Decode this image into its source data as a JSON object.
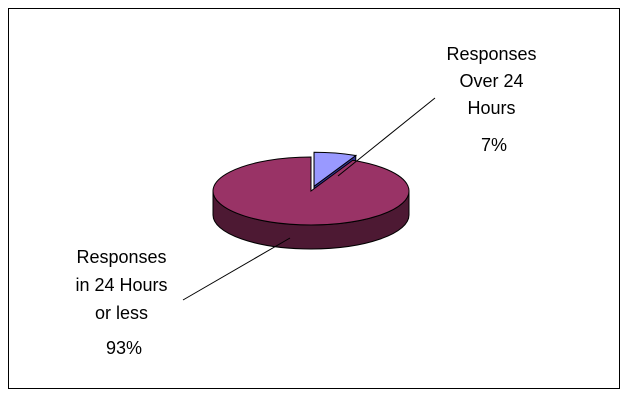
{
  "chart_data": {
    "type": "pie",
    "style": "3d-exploded",
    "title": "",
    "legend": "none",
    "slices": [
      {
        "label_lines": [
          "Responses",
          "Over 24",
          "Hours"
        ],
        "percent_label": "7%",
        "value": 7,
        "color": "#9999ff",
        "side_color": "#333399"
      },
      {
        "label_lines": [
          "Responses",
          "in 24 Hours",
          "or less"
        ],
        "percent_label": "93%",
        "value": 93,
        "color": "#993366",
        "side_color": "#4d1933"
      }
    ]
  }
}
